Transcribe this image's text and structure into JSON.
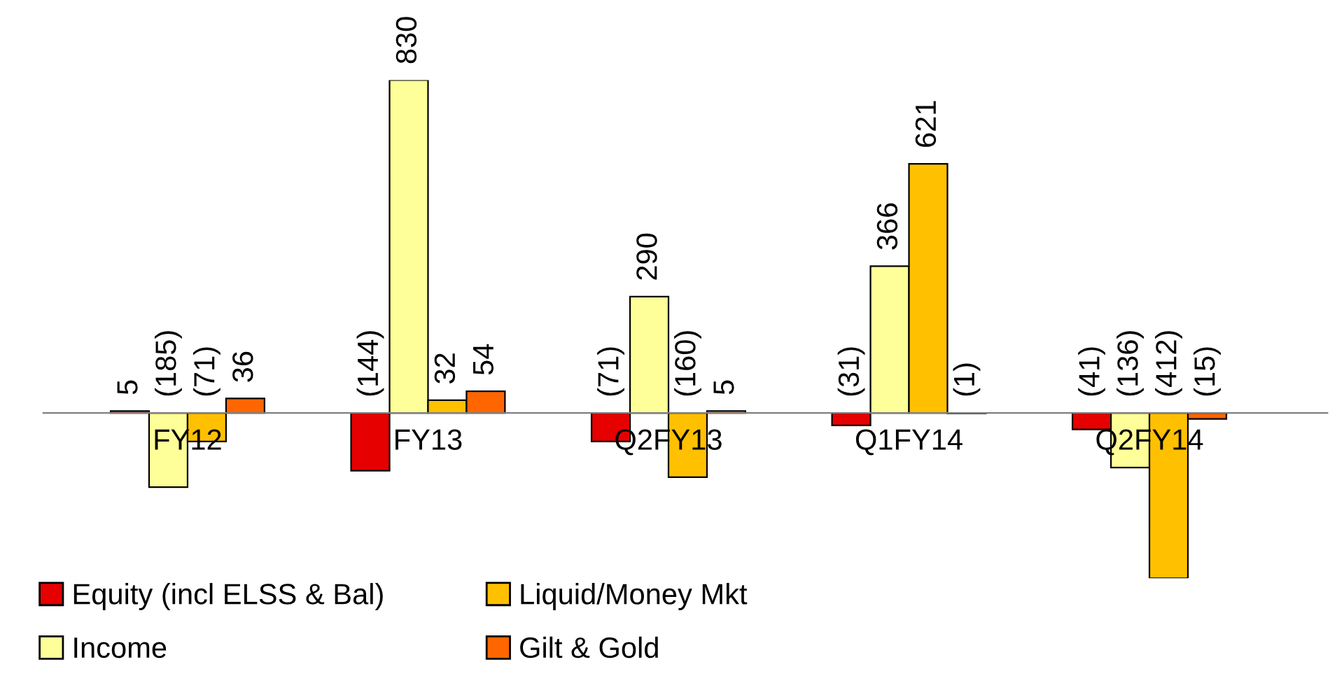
{
  "chart_data": {
    "type": "bar",
    "categories": [
      "FY12",
      "FY13",
      "Q2FY13",
      "Q1FY14",
      "Q2FY14"
    ],
    "series": [
      {
        "name": "Equity (incl ELSS & Bal)",
        "color": "#e60000",
        "values": [
          5,
          -144,
          -71,
          -31,
          -41
        ],
        "value_labels": [
          "5",
          "(144)",
          "(71)",
          "(31)",
          "(41)"
        ]
      },
      {
        "name": "Income",
        "color": "#ffff99",
        "values": [
          -185,
          830,
          290,
          366,
          -136
        ],
        "value_labels": [
          "(185)",
          "830",
          "290",
          "366",
          "(136)"
        ]
      },
      {
        "name": "Liquid/Money Mkt",
        "color": "#ffc000",
        "values": [
          -71,
          32,
          -160,
          621,
          -412
        ],
        "value_labels": [
          "(71)",
          "32",
          "(160)",
          "621",
          "(412)"
        ]
      },
      {
        "name": "Gilt & Gold",
        "color": "#ff6600",
        "values": [
          36,
          54,
          5,
          -1,
          -15
        ],
        "value_labels": [
          "36",
          "54",
          "5",
          "(1)",
          "(15)"
        ]
      }
    ],
    "legend": "bottom",
    "grid": false
  }
}
